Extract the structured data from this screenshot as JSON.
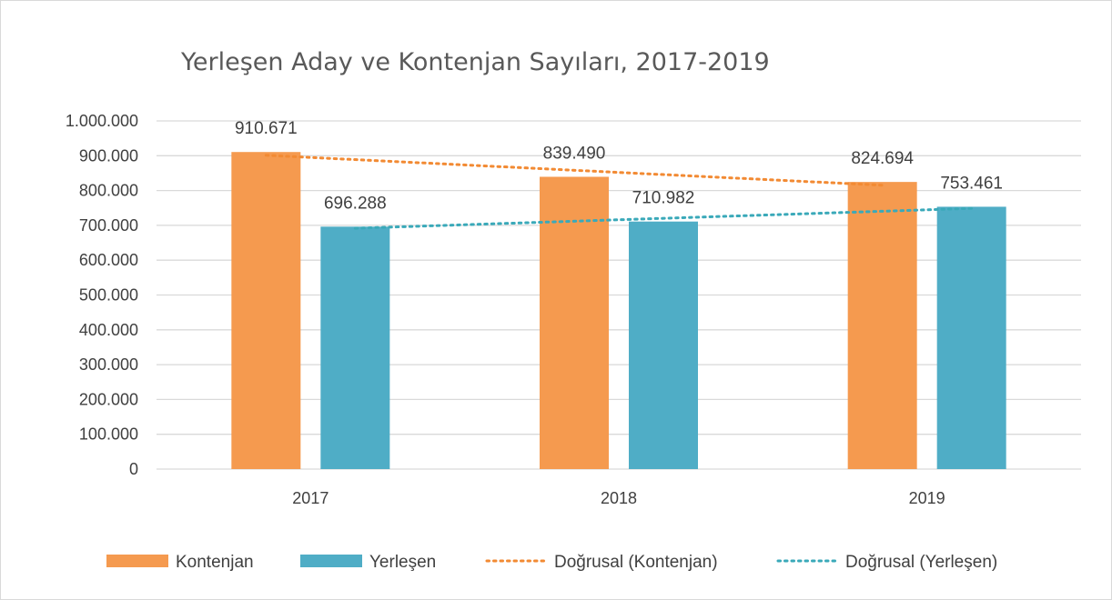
{
  "colors": {
    "kontenjan": "#f59a4f",
    "yerlesen": "#4fadc6",
    "trend_kontenjan": "#f28a33",
    "trend_yerlesen": "#3aa9b9",
    "grid": "#d9d9d9",
    "text": "#404040"
  },
  "chart_data": {
    "type": "bar",
    "title": "Yerleşen Aday ve Kontenjan Sayıları, 2017-2019",
    "xlabel": "",
    "ylabel": "",
    "categories": [
      "2017",
      "2018",
      "2019"
    ],
    "ylim": [
      0,
      1000000
    ],
    "yticks": [
      0,
      100000,
      200000,
      300000,
      400000,
      500000,
      600000,
      700000,
      800000,
      900000,
      1000000
    ],
    "ytick_labels": [
      "0",
      "100.000",
      "200.000",
      "300.000",
      "400.000",
      "500.000",
      "600.000",
      "700.000",
      "800.000",
      "900.000",
      "1.000.000"
    ],
    "grid": true,
    "legend_position": "bottom",
    "series": [
      {
        "name": "Kontenjan",
        "values": [
          910671,
          839490,
          824694
        ],
        "labels": [
          "910.671",
          "839.490",
          "824.694"
        ],
        "color": "#f59a4f"
      },
      {
        "name": "Yerleşen",
        "values": [
          696288,
          710982,
          753461
        ],
        "labels": [
          "696.288",
          "710.982",
          "753.461"
        ],
        "color": "#4fadc6"
      }
    ],
    "trendlines": [
      {
        "name": "Doğrusal (Kontenjan)",
        "of": "Kontenjan",
        "style": "dotted",
        "color": "#f28a33"
      },
      {
        "name": "Doğrusal (Yerleşen)",
        "of": "Yerleşen",
        "style": "dotted",
        "color": "#3aa9b9"
      }
    ]
  }
}
